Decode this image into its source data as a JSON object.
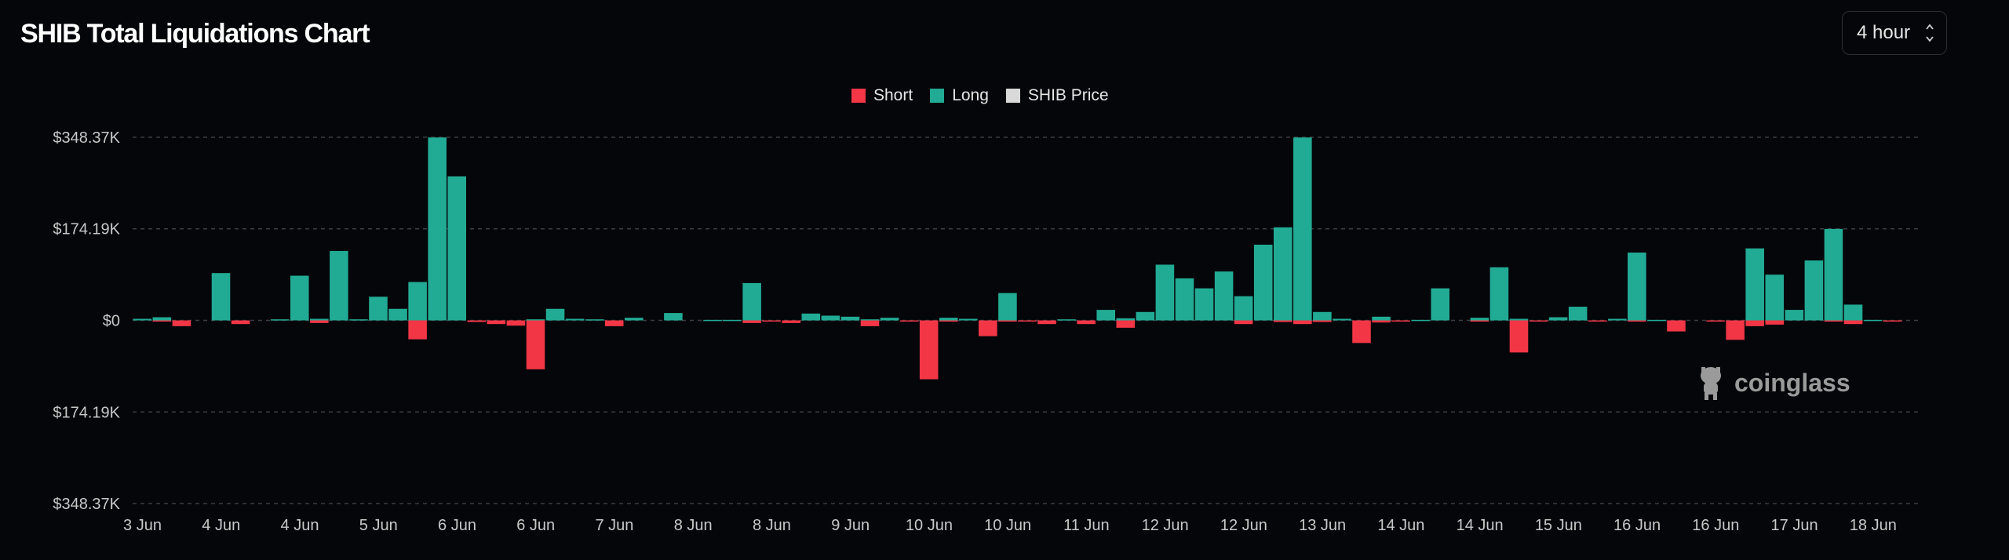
{
  "header": {
    "title": "SHIB Total Liquidations Chart",
    "interval": "4 hour"
  },
  "watermark": "coinglass",
  "colors": {
    "short": "#f23645",
    "long": "#22ab94",
    "price": "#d9d9d9",
    "background": "#05060a",
    "grid": "#3a3d45"
  },
  "chart_data": {
    "type": "bar",
    "title": "SHIB Total Liquidations Chart",
    "legend": [
      {
        "name": "Short",
        "color": "#f23645"
      },
      {
        "name": "Long",
        "color": "#22ab94"
      },
      {
        "name": "SHIB Price",
        "color": "#d9d9d9"
      }
    ],
    "legend_position": "top-center",
    "y_tick_labels": [
      "$348.37K",
      "$174.19K",
      "$0",
      "$174.19K",
      "$348.37K"
    ],
    "y_ticks": [
      348.37,
      174.19,
      0,
      -174.19,
      -348.37
    ],
    "ylim": [
      -348.37,
      348.37
    ],
    "yunit": "K USD",
    "x_tick_labels": [
      "3 Jun",
      "4 Jun",
      "4 Jun",
      "5 Jun",
      "6 Jun",
      "6 Jun",
      "7 Jun",
      "8 Jun",
      "8 Jun",
      "9 Jun",
      "10 Jun",
      "10 Jun",
      "11 Jun",
      "12 Jun",
      "12 Jun",
      "13 Jun",
      "14 Jun",
      "14 Jun",
      "15 Jun",
      "16 Jun",
      "16 Jun",
      "17 Jun",
      "18 Jun"
    ],
    "x_tick_every": 4,
    "grid": true,
    "series": [
      {
        "name": "Long",
        "values": [
          3,
          6,
          0,
          0,
          90,
          0,
          0,
          2,
          85,
          3,
          132,
          2,
          45,
          22,
          73,
          348,
          274,
          0,
          0,
          0,
          2,
          22,
          3,
          2,
          0,
          5,
          0,
          14,
          0,
          1,
          1,
          71,
          0,
          0,
          13,
          9,
          7,
          2,
          5,
          0,
          0,
          5,
          3,
          0,
          52,
          0,
          0,
          2,
          0,
          20,
          4,
          16,
          106,
          80,
          61,
          93,
          46,
          144,
          177,
          348,
          16,
          3,
          0,
          7,
          0,
          1,
          61,
          0,
          5,
          101,
          3,
          0,
          6,
          26,
          0,
          3,
          129,
          1,
          0,
          0,
          0,
          0,
          137,
          87,
          20,
          114,
          174,
          30,
          1,
          0
        ]
      },
      {
        "name": "Short",
        "values": [
          0,
          2,
          11,
          0,
          0,
          7,
          0,
          0,
          0,
          5,
          0,
          0,
          0,
          0,
          36,
          0,
          0,
          3,
          7,
          10,
          93,
          0,
          0,
          0,
          11,
          0,
          0,
          0,
          0,
          0,
          0,
          5,
          2,
          5,
          0,
          0,
          0,
          11,
          0,
          2,
          112,
          2,
          0,
          30,
          1,
          2,
          7,
          0,
          7,
          0,
          14,
          0,
          0,
          0,
          0,
          0,
          7,
          0,
          3,
          7,
          3,
          0,
          43,
          4,
          2,
          0,
          0,
          0,
          2,
          0,
          61,
          1,
          0,
          0,
          2,
          0,
          2,
          0,
          21,
          0,
          1,
          37,
          11,
          8,
          0,
          0,
          2,
          7,
          0,
          2
        ]
      }
    ]
  }
}
